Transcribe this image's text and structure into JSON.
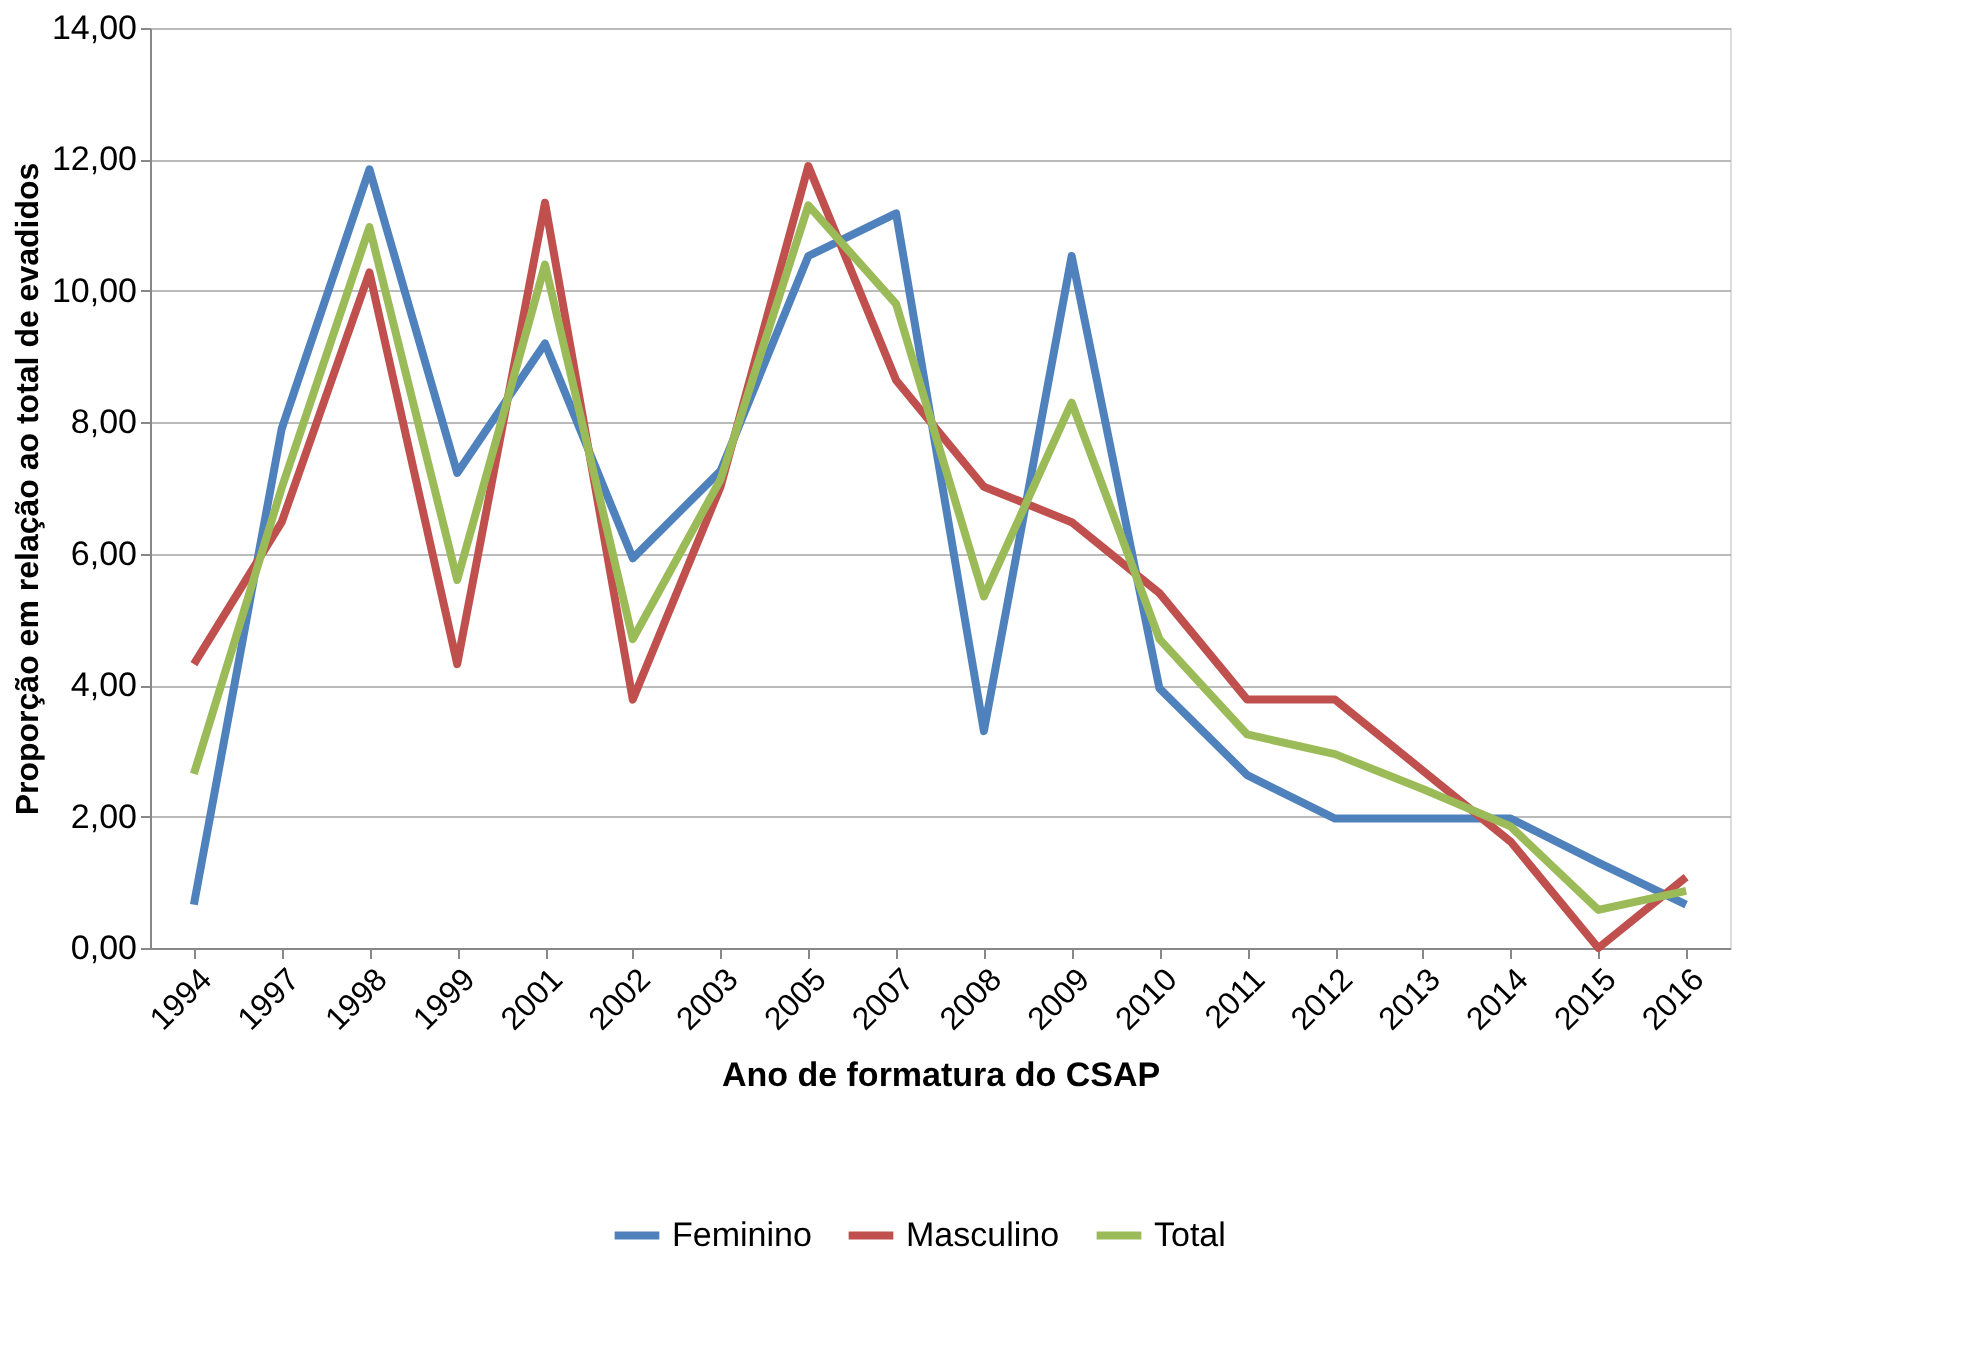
{
  "chart_data": {
    "type": "line",
    "xlabel": "Ano de formatura do CSAP",
    "ylabel": "Proporção em relação ao total de  evadidos",
    "categories": [
      "1994",
      "1997",
      "1998",
      "1999",
      "2001",
      "2002",
      "2003",
      "2005",
      "2007",
      "2008",
      "2009",
      "2010",
      "2011",
      "2012",
      "2013",
      "2014",
      "2015",
      "2016"
    ],
    "series": [
      {
        "name": "Feminino",
        "color": "#4f81bd",
        "values": [
          0.66,
          7.9,
          11.85,
          7.23,
          9.2,
          5.93,
          7.26,
          10.53,
          11.18,
          3.3,
          10.53,
          3.95,
          2.63,
          1.97,
          1.97,
          1.97,
          1.3,
          0.66
        ]
      },
      {
        "name": "Masculino",
        "color": "#c0504d",
        "values": [
          4.32,
          6.48,
          10.28,
          4.32,
          11.34,
          3.78,
          7.02,
          11.9,
          8.64,
          7.02,
          6.48,
          5.4,
          3.78,
          3.78,
          2.7,
          1.62,
          0,
          1.08
        ]
      },
      {
        "name": "Total",
        "color": "#9bbb59",
        "values": [
          2.65,
          7.0,
          10.97,
          5.6,
          10.4,
          4.7,
          7.13,
          11.3,
          9.8,
          5.35,
          8.3,
          4.7,
          3.25,
          2.95,
          2.42,
          1.85,
          0.58,
          0.87
        ]
      }
    ],
    "ylim": [
      0,
      14
    ],
    "yticks": [
      {
        "value": 0,
        "label": "0,00"
      },
      {
        "value": 2,
        "label": "2,00"
      },
      {
        "value": 4,
        "label": "4,00"
      },
      {
        "value": 6,
        "label": "6,00"
      },
      {
        "value": 8,
        "label": "8,00"
      },
      {
        "value": 10,
        "label": "10,00"
      },
      {
        "value": 12,
        "label": "12,00"
      },
      {
        "value": 14,
        "label": "14,00"
      }
    ],
    "grid": "y",
    "legend": "bottom",
    "marker": "none",
    "line_style": "solid"
  }
}
